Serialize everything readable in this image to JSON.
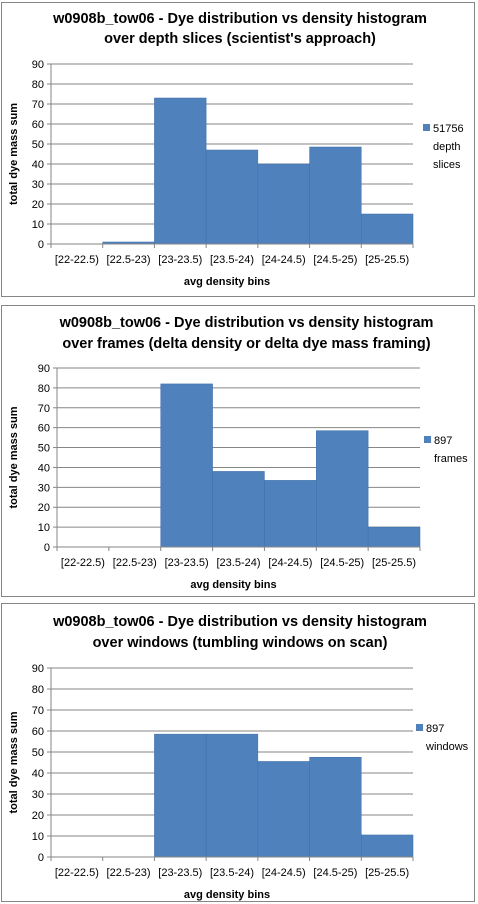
{
  "chart_data": [
    {
      "type": "bar",
      "title_lines": [
        "w0908b_tow06 - Dye distribution vs density histogram",
        "over depth slices (scientist's approach)"
      ],
      "categories": [
        "[22-22.5)",
        "[22.5-23)",
        "[23-23.5)",
        "[23.5-24)",
        "[24-24.5)",
        "[24.5-25)",
        "[25-25.5)"
      ],
      "series": [
        {
          "name": "51756 depth slices",
          "values": [
            0,
            1,
            73,
            47,
            40,
            48.5,
            15
          ]
        }
      ],
      "legend_lines": [
        "51756",
        "depth",
        "slices"
      ],
      "xlabel": "avg density bins",
      "ylabel": "total dye mass sum",
      "ylim": [
        0,
        90
      ],
      "yticks": [
        0,
        10,
        20,
        30,
        40,
        50,
        60,
        70,
        80,
        90
      ],
      "grid": true,
      "legend_position": "right",
      "color": "#4F81BD"
    },
    {
      "type": "bar",
      "title_lines": [
        "w0908b_tow06 - Dye distribution vs density histogram",
        "over frames (delta density or delta dye mass framing)"
      ],
      "categories": [
        "[22-22.5)",
        "[22.5-23)",
        "[23-23.5)",
        "[23.5-24)",
        "[24-24.5)",
        "[24.5-25)",
        "[25-25.5)"
      ],
      "series": [
        {
          "name": "897 frames",
          "values": [
            0,
            0,
            82,
            38,
            33.5,
            58.5,
            10
          ]
        }
      ],
      "legend_lines": [
        "897",
        "frames"
      ],
      "xlabel": "avg density bins",
      "ylabel": "total dye mass sum",
      "ylim": [
        0,
        90
      ],
      "yticks": [
        0,
        10,
        20,
        30,
        40,
        50,
        60,
        70,
        80,
        90
      ],
      "grid": true,
      "legend_position": "right",
      "color": "#4F81BD"
    },
    {
      "type": "bar",
      "title_lines": [
        "w0908b_tow06 - Dye distribution vs density histogram",
        "over windows (tumbling windows on scan)"
      ],
      "categories": [
        "[22-22.5)",
        "[22.5-23)",
        "[23-23.5)",
        "[23.5-24)",
        "[24-24.5)",
        "[24.5-25)",
        "[25-25.5)"
      ],
      "series": [
        {
          "name": "897 windows",
          "values": [
            0,
            0,
            58.5,
            58.5,
            45.5,
            47.5,
            10.5
          ]
        }
      ],
      "legend_lines": [
        "897",
        "windows"
      ],
      "xlabel": "avg density bins",
      "ylabel": "total dye mass sum",
      "ylim": [
        0,
        90
      ],
      "yticks": [
        0,
        10,
        20,
        30,
        40,
        50,
        60,
        70,
        80,
        90
      ],
      "grid": true,
      "legend_position": "right",
      "color": "#4F81BD"
    }
  ]
}
